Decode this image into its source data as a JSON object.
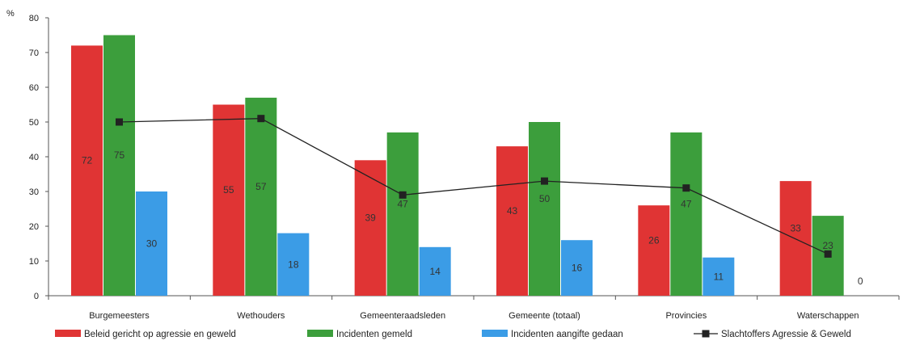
{
  "chart_data": {
    "type": "bar",
    "y_unit_label": "%",
    "ylim": [
      0,
      80
    ],
    "yticks": [
      0,
      10,
      20,
      30,
      40,
      50,
      60,
      70,
      80
    ],
    "categories": [
      "Burgemeesters",
      "Wethouders",
      "Gemeenteraadsleden",
      "Gemeente (totaal)",
      "Provincies",
      "Waterschappen"
    ],
    "series": [
      {
        "name": "Beleid gericht op agressie en geweld",
        "type": "bar",
        "color": "#e03434",
        "values": [
          72,
          55,
          39,
          43,
          26,
          33
        ]
      },
      {
        "name": "Incidenten gemeld",
        "type": "bar",
        "color": "#3c9e3c",
        "values": [
          75,
          57,
          47,
          50,
          47,
          23
        ]
      },
      {
        "name": "Incidenten aangifte gedaan",
        "type": "bar",
        "color": "#3b9ce6",
        "values": [
          30,
          18,
          14,
          16,
          11,
          0
        ]
      },
      {
        "name": "Slachtoffers Agressie & Geweld",
        "type": "line",
        "color": "#222222",
        "values": [
          50,
          51,
          29,
          33,
          31,
          12
        ]
      }
    ],
    "legend_position": "bottom",
    "grid": false
  }
}
